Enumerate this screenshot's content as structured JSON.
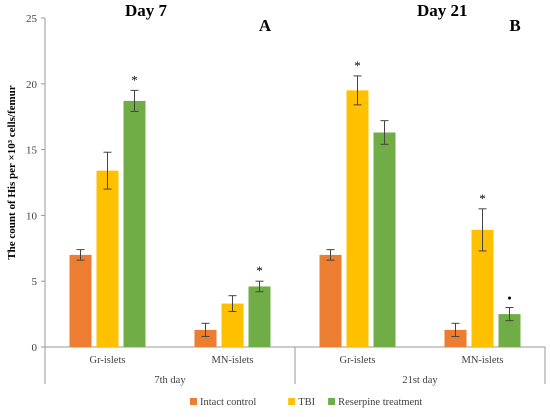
{
  "chart_data": {
    "type": "bar",
    "ylabel": "The count of His per ×10³ cells/femur",
    "ylim": [
      0,
      25
    ],
    "yticks": [
      0,
      5,
      10,
      15,
      20,
      25
    ],
    "grid": false,
    "legend_position": "bottom",
    "series": [
      {
        "name": "Intact control",
        "color": "#ED7D31"
      },
      {
        "name": "TBI",
        "color": "#FFC000"
      },
      {
        "name": "Reserpine treatment",
        "color": "#70AD47"
      }
    ],
    "panels": [
      {
        "title": "Day 7",
        "letter": "A",
        "group_label": "7th day",
        "categories": [
          {
            "label": "Gr-islets",
            "values": [
              7.0,
              13.4,
              18.7
            ],
            "errors": [
              0.4,
              1.4,
              0.8
            ],
            "marks": [
              "",
              "",
              "*"
            ]
          },
          {
            "label": "MN-islets",
            "values": [
              1.3,
              3.3,
              4.6
            ],
            "errors": [
              0.5,
              0.6,
              0.4
            ],
            "marks": [
              "",
              "",
              "*"
            ]
          }
        ]
      },
      {
        "title": "Day 21",
        "letter": "B",
        "group_label": "21st day",
        "categories": [
          {
            "label": "Gr-islets",
            "values": [
              7.0,
              19.5,
              16.3
            ],
            "errors": [
              0.4,
              1.1,
              0.9
            ],
            "marks": [
              "",
              "*",
              ""
            ]
          },
          {
            "label": "MN-islets",
            "values": [
              1.3,
              8.9,
              2.5
            ],
            "errors": [
              0.5,
              1.6,
              0.5
            ],
            "marks": [
              "",
              "*",
              "•"
            ]
          }
        ]
      }
    ]
  }
}
